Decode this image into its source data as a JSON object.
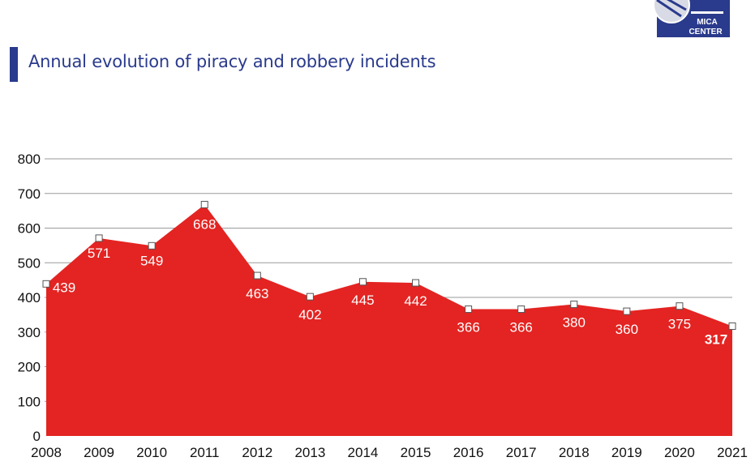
{
  "header": {
    "title": "Annual evolution of piracy and robbery incidents",
    "logo_text": [
      "MICA",
      "CENTER"
    ]
  },
  "colors": {
    "fill": "#e32422",
    "title": "#2a3a8c",
    "logo": "#2a3a8c",
    "grid": "#9a9a9a"
  },
  "chart_data": {
    "type": "area",
    "title": "Annual evolution of piracy and robbery incidents",
    "x": [
      "2008",
      "2009",
      "2010",
      "2011",
      "2012",
      "2013",
      "2014",
      "2015",
      "2016",
      "2017",
      "2018",
      "2019",
      "2020",
      "2021"
    ],
    "values": [
      439,
      571,
      549,
      668,
      463,
      402,
      445,
      442,
      366,
      366,
      380,
      360,
      375,
      317
    ],
    "data_labels": [
      "439",
      "571",
      "549",
      "668",
      "463",
      "402",
      "445",
      "442",
      "366",
      "366",
      "380",
      "360",
      "375",
      "317"
    ],
    "yticks": [
      "0",
      "100",
      "200",
      "300",
      "400",
      "500",
      "600",
      "700",
      "800"
    ],
    "ylim": [
      0,
      800
    ],
    "grid": true,
    "xlabel": "",
    "ylabel": ""
  }
}
